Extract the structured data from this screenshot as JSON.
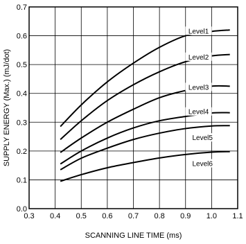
{
  "chart_data": {
    "type": "line",
    "xlabel": "SCANNING  LINE  TIME (ms)",
    "ylabel": "SUPPLY  ENERGY (Max.) (mJ/dot)",
    "xlim": [
      0.3,
      1.1
    ],
    "ylim": [
      0.0,
      0.7
    ],
    "x_ticks": [
      "0.3",
      "0.4",
      "0.5",
      "0.6",
      "0.7",
      "0.8",
      "0.9",
      "1.0",
      "1.1"
    ],
    "y_ticks": [
      "0.0",
      "0.1",
      "0.2",
      "0.3",
      "0.4",
      "0.5",
      "0.6",
      "0.7"
    ],
    "grid": true,
    "x": [
      0.42,
      0.5,
      0.6,
      0.7,
      0.8,
      0.9,
      1.0,
      1.07
    ],
    "series": [
      {
        "name": "Level1",
        "values": [
          0.285,
          0.36,
          0.44,
          0.505,
          0.56,
          0.6,
          0.615,
          0.62
        ],
        "label_at": [
          0.95,
          0.615
        ]
      },
      {
        "name": "Level2",
        "values": [
          0.24,
          0.305,
          0.375,
          0.43,
          0.475,
          0.51,
          0.53,
          0.535
        ],
        "label_at": [
          0.95,
          0.525
        ]
      },
      {
        "name": "Level3",
        "values": [
          0.195,
          0.245,
          0.3,
          0.345,
          0.385,
          0.41,
          0.425,
          0.425
        ],
        "label_at": [
          0.95,
          0.42
        ]
      },
      {
        "name": "Level4",
        "values": [
          0.155,
          0.2,
          0.245,
          0.28,
          0.305,
          0.32,
          0.332,
          0.333
        ],
        "label_at": [
          0.95,
          0.335
        ]
      },
      {
        "name": "Level5",
        "values": [
          0.135,
          0.175,
          0.21,
          0.24,
          0.262,
          0.278,
          0.287,
          0.288
        ],
        "label_at": [
          0.965,
          0.245
        ]
      },
      {
        "name": "Level6",
        "values": [
          0.095,
          0.118,
          0.142,
          0.16,
          0.176,
          0.188,
          0.196,
          0.198
        ],
        "label_at": [
          0.965,
          0.155
        ]
      }
    ]
  }
}
